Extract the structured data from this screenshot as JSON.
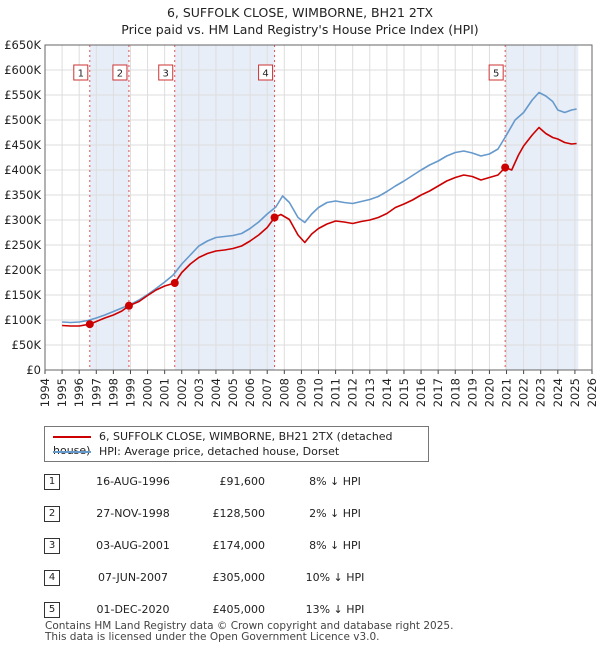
{
  "title_line1": "6, SUFFOLK CLOSE, WIMBORNE, BH21 2TX",
  "title_line2": "Price paid vs. HM Land Registry's House Price Index (HPI)",
  "colors": {
    "property": "#cc0000",
    "hpi": "#6699cc",
    "shade": "#e8eef8",
    "grid": "#dddddd"
  },
  "chart_data": {
    "type": "line",
    "xlim": [
      1994,
      2026
    ],
    "ylim": [
      0,
      650000
    ],
    "yticks": [
      0,
      50000,
      100000,
      150000,
      200000,
      250000,
      300000,
      350000,
      400000,
      450000,
      500000,
      550000,
      600000,
      650000
    ],
    "ytick_labels": [
      "£0",
      "£50K",
      "£100K",
      "£150K",
      "£200K",
      "£250K",
      "£300K",
      "£350K",
      "£400K",
      "£450K",
      "£500K",
      "£550K",
      "£600K",
      "£650K"
    ],
    "xticks": [
      1994,
      1995,
      1996,
      1997,
      1998,
      1999,
      2000,
      2001,
      2002,
      2003,
      2004,
      2005,
      2006,
      2007,
      2008,
      2009,
      2010,
      2011,
      2012,
      2013,
      2014,
      2015,
      2016,
      2017,
      2018,
      2019,
      2020,
      2021,
      2022,
      2023,
      2024,
      2025,
      2026
    ],
    "shaded_ranges": [
      [
        1996.62,
        1998.91
      ],
      [
        2001.59,
        2007.43
      ],
      [
        2020.92,
        2025.2
      ]
    ],
    "series": [
      {
        "name": "6, SUFFOLK CLOSE, WIMBORNE, BH21 2TX (detached house)",
        "x": [
          1995.0,
          1995.5,
          1996.0,
          1996.62,
          1997.0,
          1997.5,
          1998.0,
          1998.5,
          1998.91,
          1999.5,
          2000.0,
          2000.5,
          2001.0,
          2001.59,
          2002.0,
          2002.5,
          2003.0,
          2003.5,
          2004.0,
          2004.5,
          2005.0,
          2005.5,
          2006.0,
          2006.5,
          2007.0,
          2007.43,
          2007.8,
          2008.3,
          2008.8,
          2009.2,
          2009.6,
          2010.0,
          2010.5,
          2011.0,
          2011.5,
          2012.0,
          2012.5,
          2013.0,
          2013.5,
          2014.0,
          2014.5,
          2015.0,
          2015.5,
          2016.0,
          2016.5,
          2017.0,
          2017.5,
          2018.0,
          2018.5,
          2019.0,
          2019.5,
          2020.0,
          2020.5,
          2020.92,
          2021.3,
          2021.7,
          2022.0,
          2022.5,
          2022.9,
          2023.3,
          2023.7,
          2024.0,
          2024.4,
          2024.8,
          2025.1
        ],
        "y": [
          89000,
          88000,
          88000,
          91600,
          97000,
          104000,
          110000,
          118000,
          128500,
          137000,
          149000,
          160000,
          168000,
          174000,
          195000,
          212000,
          225000,
          233000,
          238000,
          240000,
          243000,
          248000,
          258000,
          270000,
          285000,
          305000,
          311000,
          301000,
          270000,
          255000,
          272000,
          283000,
          292000,
          298000,
          296000,
          293000,
          297000,
          300000,
          305000,
          313000,
          325000,
          332000,
          340000,
          350000,
          358000,
          368000,
          378000,
          385000,
          390000,
          387000,
          380000,
          385000,
          390000,
          405000,
          400000,
          430000,
          448000,
          470000,
          485000,
          473000,
          465000,
          462000,
          455000,
          452000,
          453000
        ]
      },
      {
        "name": "HPI: Average price, detached house, Dorset",
        "x": [
          1995.0,
          1995.5,
          1996.0,
          1996.5,
          1997.0,
          1997.5,
          1998.0,
          1998.5,
          1999.0,
          1999.5,
          2000.0,
          2000.5,
          2001.0,
          2001.5,
          2002.0,
          2002.5,
          2003.0,
          2003.5,
          2004.0,
          2004.5,
          2005.0,
          2005.5,
          2006.0,
          2006.5,
          2007.0,
          2007.5,
          2007.9,
          2008.3,
          2008.8,
          2009.2,
          2009.6,
          2010.0,
          2010.5,
          2011.0,
          2011.5,
          2012.0,
          2012.5,
          2013.0,
          2013.5,
          2014.0,
          2014.5,
          2015.0,
          2015.5,
          2016.0,
          2016.5,
          2017.0,
          2017.5,
          2018.0,
          2018.5,
          2019.0,
          2019.5,
          2020.0,
          2020.5,
          2021.0,
          2021.5,
          2022.0,
          2022.5,
          2022.9,
          2023.3,
          2023.7,
          2024.0,
          2024.4,
          2024.8,
          2025.1
        ],
        "y": [
          96000,
          95000,
          96000,
          99000,
          104000,
          110000,
          117000,
          124000,
          131000,
          140000,
          151000,
          163000,
          176000,
          190000,
          212000,
          230000,
          248000,
          258000,
          265000,
          267000,
          269000,
          273000,
          283000,
          296000,
          312000,
          326000,
          348000,
          335000,
          305000,
          295000,
          312000,
          325000,
          335000,
          338000,
          335000,
          333000,
          337000,
          341000,
          347000,
          357000,
          368000,
          378000,
          389000,
          400000,
          410000,
          418000,
          428000,
          435000,
          438000,
          434000,
          428000,
          432000,
          442000,
          470000,
          500000,
          515000,
          540000,
          555000,
          548000,
          537000,
          520000,
          515000,
          520000,
          522000
        ]
      }
    ],
    "sales": [
      {
        "label": "1",
        "x": 1996.62,
        "y": 91600
      },
      {
        "label": "2",
        "x": 1998.91,
        "y": 128500
      },
      {
        "label": "3",
        "x": 2001.59,
        "y": 174000
      },
      {
        "label": "4",
        "x": 2007.43,
        "y": 305000
      },
      {
        "label": "5",
        "x": 2020.92,
        "y": 405000
      }
    ]
  },
  "legend": {
    "property": "6, SUFFOLK CLOSE, WIMBORNE, BH21 2TX (detached house)",
    "hpi": "HPI: Average price, detached house, Dorset"
  },
  "sales_table": [
    {
      "num": "1",
      "date": "16-AUG-1996",
      "price": "£91,600",
      "hpi": "8% ↓ HPI"
    },
    {
      "num": "2",
      "date": "27-NOV-1998",
      "price": "£128,500",
      "hpi": "2% ↓ HPI"
    },
    {
      "num": "3",
      "date": "03-AUG-2001",
      "price": "£174,000",
      "hpi": "8% ↓ HPI"
    },
    {
      "num": "4",
      "date": "07-JUN-2007",
      "price": "£305,000",
      "hpi": "10% ↓ HPI"
    },
    {
      "num": "5",
      "date": "01-DEC-2020",
      "price": "£405,000",
      "hpi": "13% ↓ HPI"
    }
  ],
  "footer_line1": "Contains HM Land Registry data © Crown copyright and database right 2025.",
  "footer_line2": "This data is licensed under the Open Government Licence v3.0."
}
